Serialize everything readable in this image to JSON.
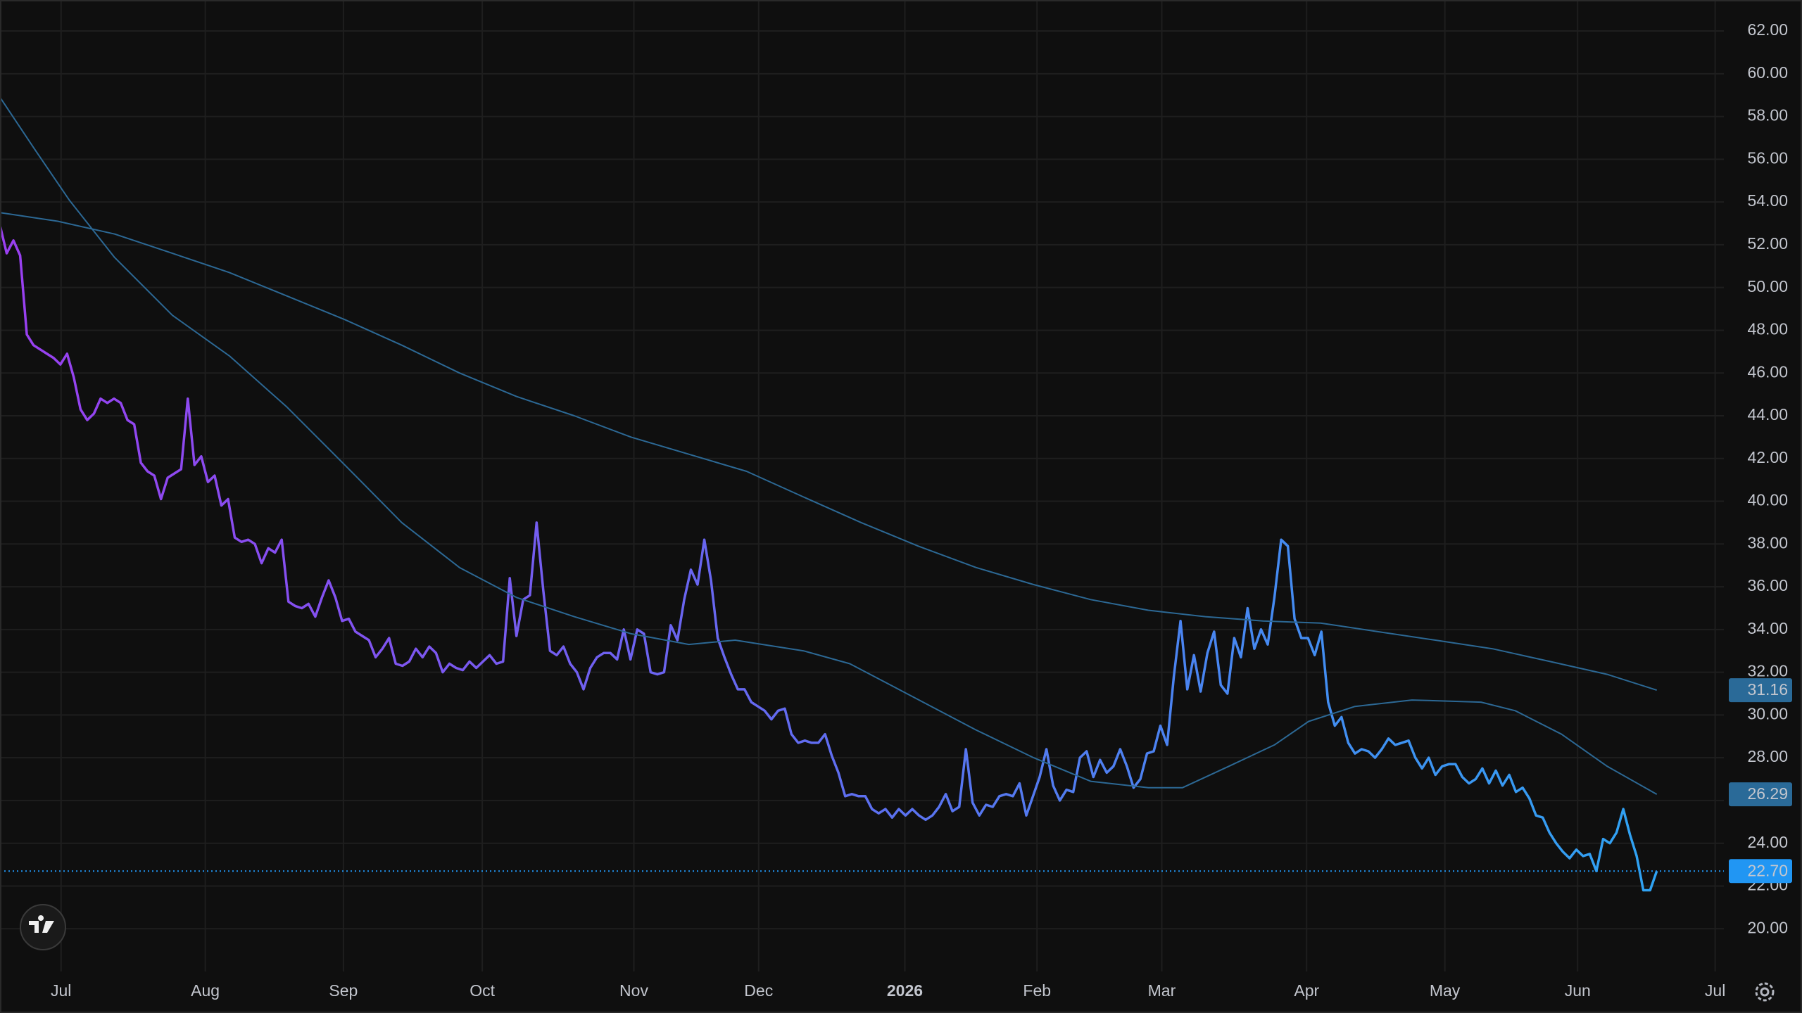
{
  "chart_data": {
    "type": "line",
    "xlim": [
      0,
      257
    ],
    "xticks": [
      {
        "value": 9.1,
        "label": "Jul"
      },
      {
        "value": 30.6,
        "label": "Aug"
      },
      {
        "value": 51.2,
        "label": "Sep"
      },
      {
        "value": 71.9,
        "label": "Oct"
      },
      {
        "value": 94.5,
        "label": "Nov"
      },
      {
        "value": 113.1,
        "label": "Dec"
      },
      {
        "value": 134.9,
        "label": "2026"
      },
      {
        "value": 154.6,
        "label": "Feb"
      },
      {
        "value": 173.2,
        "label": "Mar"
      },
      {
        "value": 194.8,
        "label": "Apr"
      },
      {
        "value": 215.4,
        "label": "May"
      },
      {
        "value": 235.2,
        "label": "Jun"
      },
      {
        "value": 255.7,
        "label": "Jul"
      }
    ],
    "ylim": [
      18.0,
      63.45
    ],
    "yticks": [
      {
        "value": 20,
        "label": "20.00"
      },
      {
        "value": 22,
        "label": "22.00"
      },
      {
        "value": 24,
        "label": "24.00"
      },
      {
        "value": 26,
        "label": "26.00"
      },
      {
        "value": 28,
        "label": "28.00"
      },
      {
        "value": 30,
        "label": "30.00"
      },
      {
        "value": 32,
        "label": "32.00"
      },
      {
        "value": 34,
        "label": "34.00"
      },
      {
        "value": 36,
        "label": "36.00"
      },
      {
        "value": 38,
        "label": "38.00"
      },
      {
        "value": 40,
        "label": "40.00"
      },
      {
        "value": 42,
        "label": "42.00"
      },
      {
        "value": 44,
        "label": "44.00"
      },
      {
        "value": 46,
        "label": "46.00"
      },
      {
        "value": 48,
        "label": "48.00"
      },
      {
        "value": 50,
        "label": "50.00"
      },
      {
        "value": 52,
        "label": "52.00"
      },
      {
        "value": 54,
        "label": "54.00"
      },
      {
        "value": 56,
        "label": "56.00"
      },
      {
        "value": 58,
        "label": "58.00"
      },
      {
        "value": 60,
        "label": "60.00"
      },
      {
        "value": 62,
        "label": "62.00"
      }
    ],
    "grid": true,
    "series": [
      {
        "colors": [
          "#9a3ff0",
          "#5d6ff0",
          "#2ba7f2"
        ],
        "label_color": "#2196f3",
        "last_label": "22.70",
        "price_line": true,
        "values": [
          52.9,
          51.6,
          52.2,
          51.5,
          47.8,
          47.3,
          47.1,
          46.9,
          46.7,
          46.4,
          46.9,
          45.8,
          44.3,
          43.8,
          44.1,
          44.8,
          44.6,
          44.8,
          44.6,
          43.8,
          43.6,
          41.8,
          41.4,
          41.2,
          40.1,
          41.1,
          41.3,
          41.5,
          44.8,
          41.7,
          42.1,
          40.9,
          41.2,
          39.8,
          40.1,
          38.3,
          38.1,
          38.2,
          38.0,
          37.1,
          37.8,
          37.6,
          38.2,
          35.3,
          35.1,
          35.0,
          35.2,
          34.6,
          35.5,
          36.3,
          35.5,
          34.4,
          34.5,
          33.9,
          33.7,
          33.5,
          32.7,
          33.1,
          33.6,
          32.4,
          32.3,
          32.5,
          33.1,
          32.7,
          33.2,
          32.9,
          32.0,
          32.4,
          32.2,
          32.1,
          32.5,
          32.2,
          32.5,
          32.8,
          32.4,
          32.5,
          36.4,
          33.7,
          35.4,
          35.6,
          39.0,
          35.8,
          33.0,
          32.8,
          33.2,
          32.4,
          32.0,
          31.2,
          32.2,
          32.7,
          32.9,
          32.9,
          32.6,
          34.0,
          32.6,
          34.0,
          33.8,
          32.0,
          31.9,
          32.0,
          34.2,
          33.5,
          35.4,
          36.8,
          36.1,
          38.2,
          36.3,
          33.6,
          32.7,
          31.9,
          31.2,
          31.2,
          30.6,
          30.4,
          30.2,
          29.8,
          30.2,
          30.3,
          29.1,
          28.7,
          28.8,
          28.7,
          28.7,
          29.1,
          28.1,
          27.3,
          26.2,
          26.3,
          26.2,
          26.2,
          25.6,
          25.4,
          25.6,
          25.2,
          25.6,
          25.3,
          25.6,
          25.3,
          25.1,
          25.3,
          25.7,
          26.3,
          25.5,
          25.7,
          28.4,
          25.9,
          25.3,
          25.8,
          25.7,
          26.2,
          26.3,
          26.2,
          26.8,
          25.3,
          26.2,
          27.1,
          28.4,
          26.7,
          26.0,
          26.5,
          26.4,
          28.0,
          28.3,
          27.1,
          27.9,
          27.3,
          27.6,
          28.4,
          27.6,
          26.6,
          27.0,
          28.2,
          28.3,
          29.5,
          28.6,
          31.8,
          34.4,
          31.2,
          32.8,
          31.1,
          32.9,
          33.9,
          31.4,
          31.0,
          33.6,
          32.7,
          35.0,
          33.1,
          34.0,
          33.3,
          35.5,
          38.2,
          37.9,
          34.5,
          33.6,
          33.6,
          32.8,
          33.9,
          30.6,
          29.5,
          29.9,
          28.7,
          28.2,
          28.4,
          28.3,
          28.0,
          28.4,
          28.9,
          28.6,
          28.7,
          28.8,
          28.0,
          27.5,
          28.0,
          27.2,
          27.6,
          27.7,
          27.7,
          27.1,
          26.8,
          27.0,
          27.5,
          26.8,
          27.4,
          26.7,
          27.2,
          26.4,
          26.6,
          26.1,
          25.3,
          25.2,
          24.5,
          24.0,
          23.6,
          23.3,
          23.7,
          23.4,
          23.5,
          22.7,
          24.2,
          24.0,
          24.5,
          25.6,
          24.4,
          23.4,
          21.8,
          21.8,
          22.7
        ]
      },
      {
        "color": "#2c6894",
        "label_color": "#2a6a98",
        "last_label": "26.29",
        "x": [
          0,
          5.1,
          10.3,
          17.1,
          25.7,
          34.2,
          42.8,
          51.4,
          59.9,
          68.5,
          77.0,
          85.6,
          94.1,
          102.7,
          109.6,
          119.8,
          126.7,
          135.2,
          145.5,
          154.1,
          162.6,
          171.2,
          176.3,
          183.2,
          190.0,
          195.1,
          202.0,
          210.5,
          220.8,
          225.9,
          232.8,
          239.6,
          247
        ],
        "values": [
          58.9,
          56.5,
          54.1,
          51.4,
          48.7,
          46.8,
          44.4,
          41.7,
          39.0,
          36.9,
          35.5,
          34.6,
          33.8,
          33.3,
          33.5,
          33.0,
          32.4,
          31.0,
          29.3,
          28.0,
          26.9,
          26.6,
          26.6,
          27.6,
          28.6,
          29.7,
          30.4,
          30.7,
          30.6,
          30.2,
          29.1,
          27.6,
          26.29
        ]
      },
      {
        "color": "#2c6894",
        "label_color": "#2a6a98",
        "last_label": "31.16",
        "x": [
          0,
          8.6,
          17.1,
          25.7,
          34.2,
          42.8,
          51.4,
          59.9,
          68.5,
          77.0,
          85.6,
          94.1,
          102.7,
          111.3,
          119.8,
          128.4,
          136.9,
          145.5,
          154.1,
          162.6,
          171.2,
          179.7,
          188.3,
          196.9,
          205.4,
          214.0,
          222.5,
          231.1,
          239.6,
          247
        ],
        "values": [
          53.5,
          53.1,
          52.5,
          51.6,
          50.7,
          49.6,
          48.5,
          47.3,
          46.0,
          44.9,
          44.0,
          43.0,
          42.2,
          41.4,
          40.2,
          39.0,
          37.9,
          36.9,
          36.1,
          35.4,
          34.9,
          34.6,
          34.4,
          34.3,
          33.9,
          33.5,
          33.1,
          32.5,
          31.9,
          31.16
        ]
      }
    ]
  }
}
